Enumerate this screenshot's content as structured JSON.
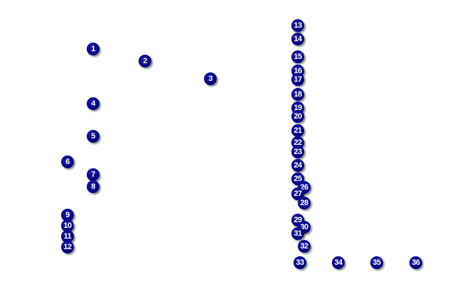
{
  "marker_color": "#00007f",
  "marker_text_color": "#ffffff",
  "markers": [
    "1",
    "2",
    "3",
    "4",
    "5",
    "6",
    "7",
    "8",
    "9",
    "10",
    "11",
    "12",
    "13",
    "14",
    "15",
    "16",
    "17",
    "18",
    "19",
    "20",
    "21",
    "22",
    "23",
    "24",
    "25",
    "26",
    "27",
    "28",
    "29",
    "30",
    "31",
    "32",
    "33",
    "34",
    "35",
    "36"
  ]
}
